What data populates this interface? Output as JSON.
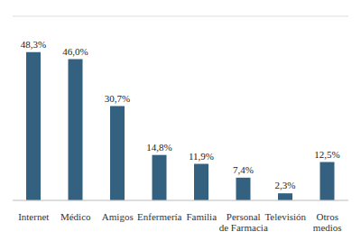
{
  "chart_data": {
    "type": "bar",
    "categories": [
      "Internet",
      "Médico",
      "Amigos",
      "Enfermería",
      "Familia",
      "Personal de Farmacia",
      "Televisión",
      "Otros medios"
    ],
    "values": [
      48.3,
      46.0,
      30.7,
      14.8,
      11.9,
      7.4,
      2.3,
      12.5
    ],
    "value_labels": [
      "48,3%",
      "46,0%",
      "30,7%",
      "14,8%",
      "11,9%",
      "7,4%",
      "2,3%",
      "12,5%"
    ],
    "color": "#34617f",
    "ylim": [
      0,
      60
    ],
    "yticks": [
      0,
      10,
      20,
      30,
      40,
      50,
      60
    ],
    "grid": true,
    "tick_labels": "x",
    "data_labels": true
  }
}
